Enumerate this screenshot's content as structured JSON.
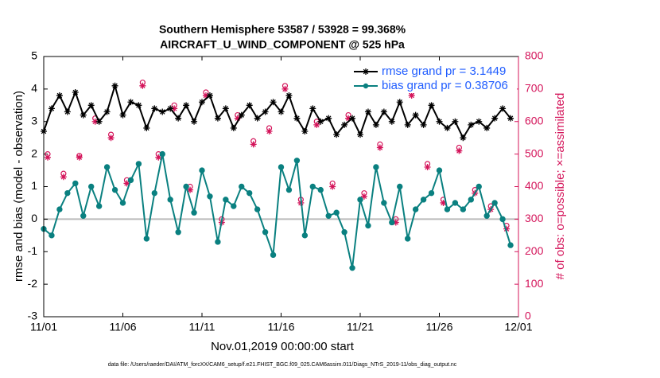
{
  "chart_data": {
    "type": "line",
    "title": [
      "Southern Hemisphere 53587 / 53928 = 99.368%",
      "AIRCRAFT_U_WIND_COMPONENT @ 525 hPa"
    ],
    "xlabel": "Nov.01,2019 00:00:00 start",
    "ylabel": "rmse and bias (model - observation)",
    "y2label": "# of obs: o=possible; ×=assimilated",
    "footnote": "data file: /Users/raeder/DAI/ATM_forcXX/CAM6_setup/f.e21.FHIST_BGC.f09_025.CAM6assim.011/Diags_NTrS_2019-11/obs_diag_output.nc",
    "xlim": [
      0,
      30
    ],
    "xticks": [
      {
        "value": 0,
        "label": "11/01"
      },
      {
        "value": 5,
        "label": "11/06"
      },
      {
        "value": 10,
        "label": "11/11"
      },
      {
        "value": 15,
        "label": "11/16"
      },
      {
        "value": 20,
        "label": "11/21"
      },
      {
        "value": 25,
        "label": "11/26"
      },
      {
        "value": 30,
        "label": "12/01"
      }
    ],
    "ylim": [
      -3,
      5
    ],
    "yticks": [
      -3,
      -2,
      -1,
      0,
      1,
      2,
      3,
      4,
      5
    ],
    "y2lim": [
      0,
      800
    ],
    "y2ticks": [
      0,
      100,
      200,
      300,
      400,
      500,
      600,
      700,
      800
    ],
    "y2color": "#d4145a",
    "hline": 0,
    "legend_text_color": "#1f5cff",
    "x": [
      0,
      0.5,
      1,
      1.5,
      2,
      2.5,
      3,
      3.5,
      4,
      4.5,
      5,
      5.5,
      6,
      6.5,
      7,
      7.5,
      8,
      8.5,
      9,
      9.5,
      10,
      10.5,
      11,
      11.5,
      12,
      12.5,
      13,
      13.5,
      14,
      14.5,
      15,
      15.5,
      16,
      16.5,
      17,
      17.5,
      18,
      18.5,
      19,
      19.5,
      20,
      20.5,
      21,
      21.5,
      22,
      22.5,
      23,
      23.5,
      24,
      24.5,
      25,
      25.5,
      26,
      26.5,
      27,
      27.5,
      28,
      28.5,
      29,
      29.5
    ],
    "series": [
      {
        "name": "rmse grand pr = 3.1449",
        "color": "#000000",
        "marker": "asterisk",
        "values": [
          2.7,
          3.4,
          3.8,
          3.3,
          3.9,
          3.2,
          3.5,
          3.0,
          3.3,
          4.1,
          3.2,
          3.6,
          3.5,
          2.8,
          3.4,
          3.3,
          3.4,
          3.1,
          3.5,
          3.0,
          3.6,
          3.8,
          3.1,
          3.4,
          2.8,
          3.2,
          3.5,
          3.1,
          3.3,
          3.6,
          3.3,
          3.8,
          3.1,
          2.7,
          3.4,
          3.0,
          3.1,
          2.6,
          2.9,
          3.1,
          2.6,
          3.3,
          2.9,
          3.3,
          3.0,
          3.6,
          2.9,
          3.2,
          2.9,
          3.5,
          3.0,
          2.8,
          3.0,
          2.5,
          2.9,
          3.0,
          2.8,
          3.1,
          3.4,
          3.1
        ]
      },
      {
        "name": "bias grand pr = 0.38706",
        "color": "#0a8080",
        "marker": "circle",
        "values": [
          -0.3,
          -0.5,
          0.3,
          0.8,
          1.1,
          0.1,
          1.0,
          0.4,
          1.6,
          0.9,
          0.5,
          1.2,
          1.7,
          -0.6,
          0.8,
          2.0,
          0.6,
          -0.4,
          1.0,
          0.2,
          1.5,
          0.7,
          -0.7,
          0.6,
          0.4,
          1.0,
          0.8,
          0.3,
          -0.4,
          -1.1,
          1.6,
          0.9,
          1.8,
          -0.5,
          1.0,
          0.9,
          0.1,
          0.2,
          -0.4,
          -1.5,
          0.6,
          -0.2,
          1.6,
          0.5,
          -0.1,
          1.0,
          -0.6,
          0.3,
          0.6,
          0.8,
          1.5,
          0.3,
          0.5,
          0.3,
          0.6,
          1.0,
          0.1,
          0.5,
          0.0,
          -0.8
        ]
      },
      {
        "color": "#d4145a",
        "marker": "circle-open",
        "axis": "y2",
        "x": [
          0.25,
          1.25,
          2.25,
          3.25,
          4.25,
          5.25,
          6.25,
          7.25,
          8.25,
          9.25,
          10.25,
          11.25,
          12.25,
          13.25,
          14.25,
          15.25,
          16.25,
          17.25,
          18.25,
          19.25,
          20.25,
          21.25,
          22.25,
          23.25,
          24.25,
          25.25,
          26.25,
          27.25,
          28.25,
          29.25
        ],
        "values": [
          500,
          440,
          495,
          610,
          560,
          420,
          720,
          500,
          650,
          400,
          690,
          300,
          620,
          540,
          580,
          710,
          360,
          600,
          410,
          620,
          380,
          530,
          300,
          690,
          470,
          360,
          520,
          390,
          340,
          280
        ]
      },
      {
        "color": "#d4145a",
        "marker": "asterisk",
        "axis": "y2",
        "x": [
          0.25,
          1.25,
          2.25,
          3.25,
          4.25,
          5.25,
          6.25,
          7.25,
          8.25,
          9.25,
          10.25,
          11.25,
          12.25,
          13.25,
          14.25,
          15.25,
          16.25,
          17.25,
          18.25,
          19.25,
          20.25,
          21.25,
          22.25,
          23.25,
          24.25,
          25.25,
          26.25,
          27.25,
          28.25,
          29.25
        ],
        "values": [
          490,
          430,
          490,
          600,
          550,
          410,
          710,
          490,
          640,
          390,
          680,
          290,
          610,
          530,
          570,
          700,
          350,
          590,
          400,
          610,
          370,
          520,
          290,
          680,
          460,
          350,
          510,
          380,
          330,
          270
        ]
      }
    ]
  }
}
